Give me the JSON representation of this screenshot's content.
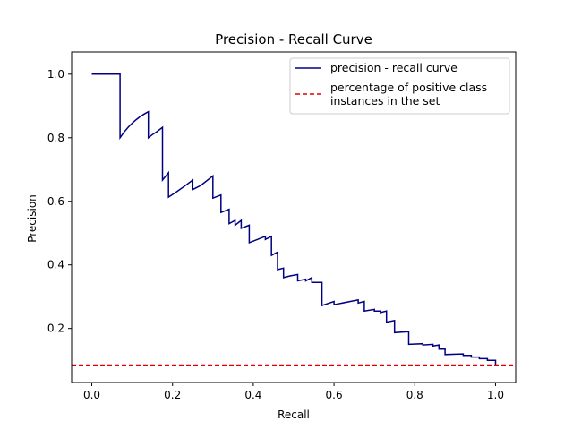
{
  "chart_data": {
    "type": "line",
    "title": "Precision - Recall Curve",
    "xlabel": "Recall",
    "ylabel": "Precision",
    "xlim": [
      -0.05,
      1.05
    ],
    "ylim": [
      0.03,
      1.07
    ],
    "x_ticks": [
      "0.0",
      "0.2",
      "0.4",
      "0.6",
      "0.8",
      "1.0"
    ],
    "y_ticks": [
      "0.2",
      "0.4",
      "0.6",
      "0.8",
      "1.0"
    ],
    "legend_position": "top-right",
    "grid": false,
    "series": [
      {
        "name": "precision - recall curve",
        "style": "solid",
        "color": "#000080",
        "points": [
          [
            0.0,
            1.0
          ],
          [
            0.07,
            1.0
          ],
          [
            0.07,
            0.8
          ],
          [
            0.08,
            0.818
          ],
          [
            0.09,
            0.833
          ],
          [
            0.1,
            0.846
          ],
          [
            0.11,
            0.857
          ],
          [
            0.12,
            0.867
          ],
          [
            0.13,
            0.875
          ],
          [
            0.14,
            0.882
          ],
          [
            0.14,
            0.8
          ],
          [
            0.15,
            0.81
          ],
          [
            0.16,
            0.818
          ],
          [
            0.175,
            0.833
          ],
          [
            0.175,
            0.667
          ],
          [
            0.19,
            0.69
          ],
          [
            0.19,
            0.613
          ],
          [
            0.21,
            0.63
          ],
          [
            0.23,
            0.648
          ],
          [
            0.25,
            0.667
          ],
          [
            0.25,
            0.637
          ],
          [
            0.27,
            0.65
          ],
          [
            0.3,
            0.68
          ],
          [
            0.3,
            0.61
          ],
          [
            0.32,
            0.62
          ],
          [
            0.32,
            0.565
          ],
          [
            0.34,
            0.575
          ],
          [
            0.34,
            0.53
          ],
          [
            0.355,
            0.54
          ],
          [
            0.355,
            0.525
          ],
          [
            0.37,
            0.54
          ],
          [
            0.37,
            0.515
          ],
          [
            0.39,
            0.525
          ],
          [
            0.39,
            0.47
          ],
          [
            0.43,
            0.49
          ],
          [
            0.43,
            0.48
          ],
          [
            0.445,
            0.49
          ],
          [
            0.445,
            0.43
          ],
          [
            0.46,
            0.44
          ],
          [
            0.46,
            0.385
          ],
          [
            0.475,
            0.39
          ],
          [
            0.475,
            0.36
          ],
          [
            0.49,
            0.365
          ],
          [
            0.49,
            0.365
          ],
          [
            0.51,
            0.37
          ],
          [
            0.51,
            0.35
          ],
          [
            0.53,
            0.355
          ],
          [
            0.53,
            0.35
          ],
          [
            0.545,
            0.36
          ],
          [
            0.545,
            0.345
          ],
          [
            0.57,
            0.345
          ],
          [
            0.57,
            0.272
          ],
          [
            0.6,
            0.285
          ],
          [
            0.6,
            0.275
          ],
          [
            0.66,
            0.29
          ],
          [
            0.66,
            0.28
          ],
          [
            0.675,
            0.285
          ],
          [
            0.675,
            0.255
          ],
          [
            0.7,
            0.26
          ],
          [
            0.7,
            0.255
          ],
          [
            0.715,
            0.255
          ],
          [
            0.715,
            0.25
          ],
          [
            0.73,
            0.255
          ],
          [
            0.73,
            0.22
          ],
          [
            0.75,
            0.225
          ],
          [
            0.75,
            0.187
          ],
          [
            0.785,
            0.19
          ],
          [
            0.785,
            0.15
          ],
          [
            0.82,
            0.152
          ],
          [
            0.82,
            0.148
          ],
          [
            0.845,
            0.15
          ],
          [
            0.845,
            0.145
          ],
          [
            0.86,
            0.148
          ],
          [
            0.86,
            0.135
          ],
          [
            0.875,
            0.135
          ],
          [
            0.875,
            0.118
          ],
          [
            0.92,
            0.12
          ],
          [
            0.92,
            0.115
          ],
          [
            0.94,
            0.115
          ],
          [
            0.94,
            0.11
          ],
          [
            0.96,
            0.11
          ],
          [
            0.96,
            0.105
          ],
          [
            0.98,
            0.105
          ],
          [
            0.98,
            0.1
          ],
          [
            1.0,
            0.1
          ],
          [
            1.0,
            0.085
          ]
        ]
      },
      {
        "name": "percentage of positive class\ninstances in the set",
        "style": "dashed",
        "color": "#e00000",
        "y_constant": 0.085
      }
    ]
  }
}
